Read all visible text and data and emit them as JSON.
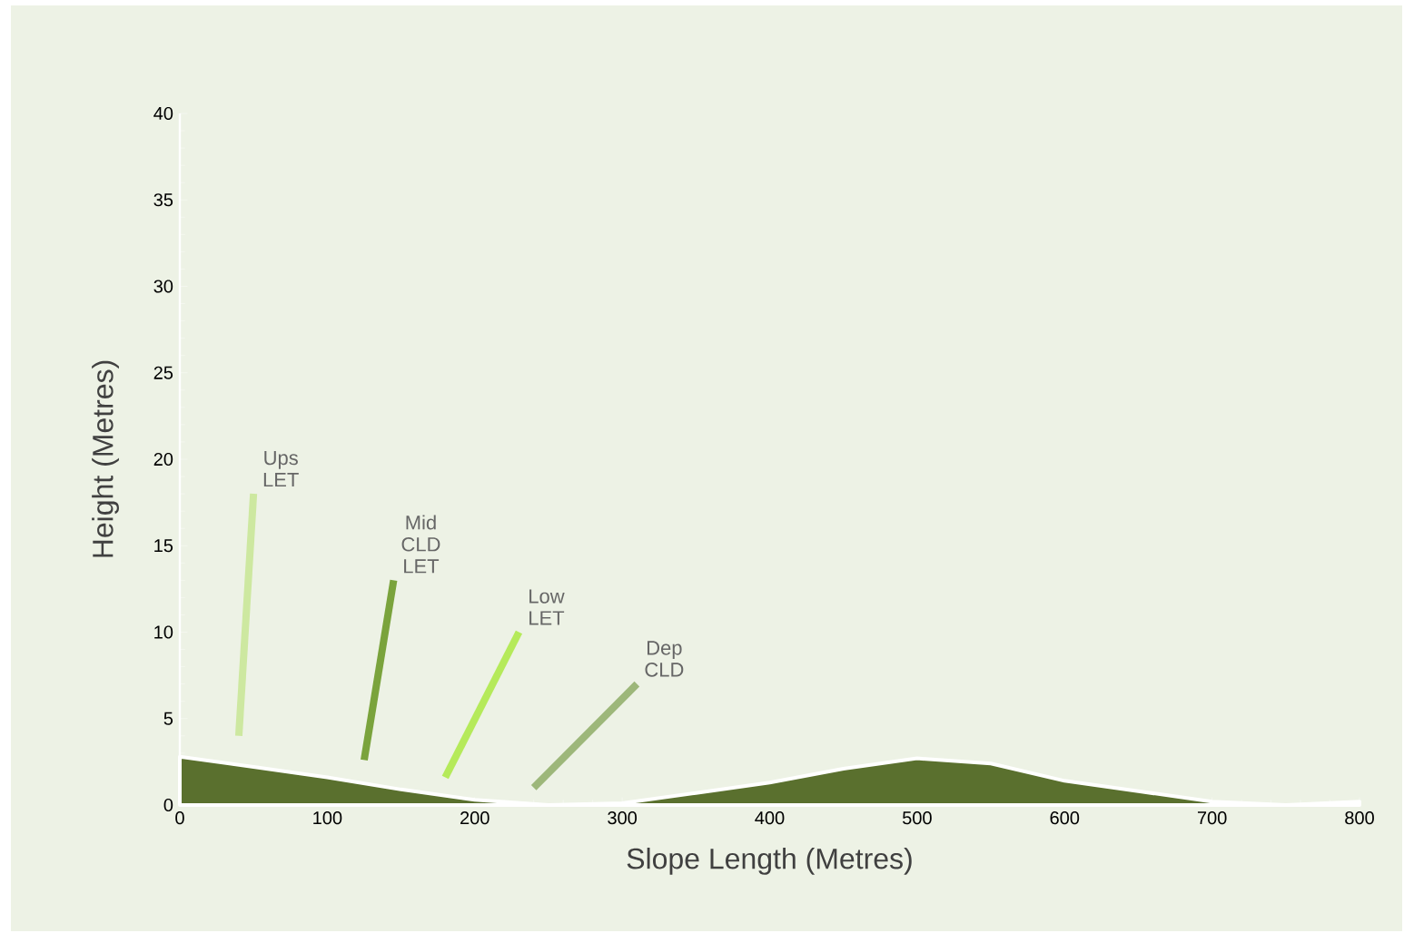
{
  "chart_data": {
    "type": "area",
    "xlabel": "Slope Length (Metres)",
    "ylabel": "Height (Metres)",
    "xlim": [
      0,
      800
    ],
    "xticks": [
      0,
      100,
      200,
      300,
      400,
      500,
      600,
      700,
      800
    ],
    "ylim": [
      0,
      40
    ],
    "yticks": [
      0,
      5,
      10,
      15,
      20,
      25,
      30,
      35,
      40
    ],
    "marker": "none",
    "line_style": "solid",
    "grid": false,
    "legend": false,
    "series": [
      {
        "color": "#5a702e",
        "x": [
          0,
          50,
          100,
          150,
          200,
          250,
          300,
          350,
          400,
          450,
          500,
          550,
          600,
          650,
          700,
          750,
          800
        ],
        "values": [
          2.8,
          2.2,
          1.6,
          0.9,
          0.3,
          0,
          0.1,
          0.7,
          1.3,
          2.1,
          2.7,
          2.4,
          1.4,
          0.8,
          0.2,
          0,
          0.2
        ]
      },
      {
        "type": "line",
        "name": "Ups LET",
        "color": "#cde8a0",
        "x": [
          40,
          50
        ],
        "values": [
          4,
          18
        ]
      },
      {
        "type": "line",
        "name": "Mid CLD LET",
        "color": "#7aa33c",
        "x": [
          125,
          145
        ],
        "values": [
          2.6,
          13
        ]
      },
      {
        "type": "line",
        "name": "Low LET",
        "color": "#b5ea5a",
        "x": [
          180,
          230
        ],
        "values": [
          1.6,
          10
        ]
      },
      {
        "type": "line",
        "name": "Dep CLD",
        "color": "#9db77a",
        "x": [
          240,
          310
        ],
        "values": [
          1,
          7
        ]
      }
    ]
  }
}
